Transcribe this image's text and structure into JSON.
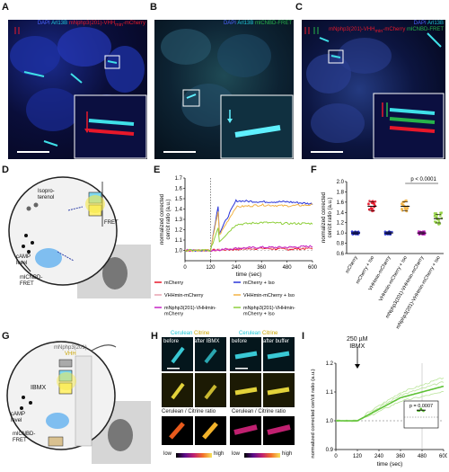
{
  "panels": {
    "A": {
      "label": "A",
      "t_dapi": "DAPI",
      "t_arl": "Arl13B",
      "t_mnp": "mNphp3(201)-VHH",
      "t_sub": "min",
      "t_mch": "-mCherry"
    },
    "B": {
      "label": "B",
      "t_dapi": "DAPI",
      "t_arl": "Arl13B",
      "t_mic": "mlCNBD-FRET"
    },
    "C": {
      "label": "C",
      "t_dapi": "DAPI",
      "t_arl": "Arl13B",
      "t_mnp": "mNphp3(201)-VHH",
      "t_sub": "min",
      "t_mch": "-mCherry",
      "t_mic": "mlCNBD-FRET"
    },
    "D": {
      "label": "D",
      "isoproterenol": "Isopro-\nterenol",
      "camp": "cAMP\nlevel",
      "fret": "FRET",
      "sensor": "mlCNBD-\nFRET"
    },
    "E": {
      "label": "E"
    },
    "F": {
      "label": "F"
    },
    "G": {
      "label": "G",
      "mnp": "mNphp3(201)",
      "vhh": "VHH",
      "ibmx": "IBMX",
      "camp": "cAMP\nlevel",
      "sensor": "mlCNBD-\nFRET"
    },
    "H": {
      "label": "H",
      "cerulean": "Cerulean",
      "citrine": "Citrine",
      "before": "before",
      "after_ibmx": "after IBMX",
      "after_buffer": "after buffer",
      "ratio": "Cerulean / Citrine ratio",
      "low": "low",
      "high": "high"
    },
    "I": {
      "label": "I",
      "annot": "250 µM\nIBMX",
      "pval": "p = 0.0007"
    }
  },
  "legend_E": [
    {
      "label": "mCherry",
      "color": "#e8182a"
    },
    {
      "label": "mCherry + Iso",
      "color": "#2a35d8"
    },
    {
      "label": "VHHmin-mCherry",
      "color": "#e9a3b0"
    },
    {
      "label": "VHHmin-mCherry + Iso",
      "color": "#f2b344"
    },
    {
      "label": "mNphp3(201)-VHHmin-\nmCherry",
      "color": "#c624c6"
    },
    {
      "label": "mNphp3(201)-VHHmin-\nmCherry + Iso",
      "color": "#8fcf3c"
    }
  ],
  "chart_data": [
    {
      "id": "E",
      "type": "line",
      "xlabel": "time (sec)",
      "ylabel": "normalized corrected\ncer/cit ratio (a.u.)",
      "x": [
        0,
        120,
        240,
        360,
        480,
        600
      ],
      "xlim": [
        0,
        600
      ],
      "ylim": [
        0.9,
        1.7
      ],
      "yticks": [
        1.0,
        1.1,
        1.2,
        1.3,
        1.4,
        1.5,
        1.6,
        1.7
      ],
      "series": [
        {
          "name": "mCherry",
          "color": "#e8182a",
          "values": [
            1.0,
            1.0,
            1.01,
            1.02,
            1.01,
            1.02
          ]
        },
        {
          "name": "VHHmin-mCherry",
          "color": "#e9a3b0",
          "values": [
            1.0,
            1.0,
            1.02,
            1.02,
            1.02,
            1.03
          ]
        },
        {
          "name": "mNphp3(201)-VHHmin-mCherry",
          "color": "#c624c6",
          "values": [
            1.0,
            1.0,
            1.02,
            1.03,
            1.03,
            1.04
          ]
        },
        {
          "name": "mCherry + Iso",
          "color": "#2a35d8",
          "values": [
            1.0,
            1.0,
            1.48,
            1.47,
            1.47,
            1.45
          ]
        },
        {
          "name": "VHHmin-mCherry + Iso",
          "color": "#f2b344",
          "values": [
            1.0,
            1.0,
            1.42,
            1.44,
            1.43,
            1.44
          ]
        },
        {
          "name": "mNphp3(201)-VHHmin-mCherry + Iso",
          "color": "#8fcf3c",
          "values": [
            1.0,
            1.0,
            1.25,
            1.27,
            1.26,
            1.26
          ]
        }
      ]
    },
    {
      "id": "F",
      "type": "scatter",
      "ylabel": "normalized corrected\ncer/cit ratio (a.u.)",
      "ylim": [
        0.6,
        2.0
      ],
      "yticks": [
        0.6,
        0.8,
        1.0,
        1.2,
        1.4,
        1.6,
        1.8,
        2.0
      ],
      "categories": [
        "mCherry",
        "mCherry + Iso",
        "VHHmin-mCherry",
        "VHHmin-mCherry + Iso",
        "mNphp3(201)-VHHmin-mCherry",
        "mNphp3(201)-VHHmin-mCherry + Iso"
      ],
      "colors": [
        "#2a35d8",
        "#e8182a",
        "#2a35d8",
        "#f2b344",
        "#c624c6",
        "#8fcf3c"
      ],
      "means": [
        1.0,
        1.52,
        1.0,
        1.52,
        1.0,
        1.28
      ],
      "annotation": "p < 0.0001"
    },
    {
      "id": "I",
      "type": "line",
      "xlabel": "time (sec)",
      "ylabel": "normalized corrected cer/cit ratio (a.u.)",
      "x": [
        0,
        120,
        240,
        360,
        480,
        600
      ],
      "xlim": [
        0,
        600
      ],
      "ylim": [
        0.9,
        1.2
      ],
      "yticks": [
        0.9,
        1.0,
        1.1,
        1.2
      ],
      "series": [
        {
          "name": "mean",
          "color": "#5fc236",
          "values": [
            1.0,
            1.0,
            1.04,
            1.08,
            1.1,
            1.12
          ]
        }
      ],
      "inset": {
        "ylim": [
          0.8,
          1.3
        ],
        "mean": 1.13,
        "pval": "p = 0.0007"
      }
    }
  ],
  "colorbar": {
    "low": "low",
    "high": "high"
  }
}
